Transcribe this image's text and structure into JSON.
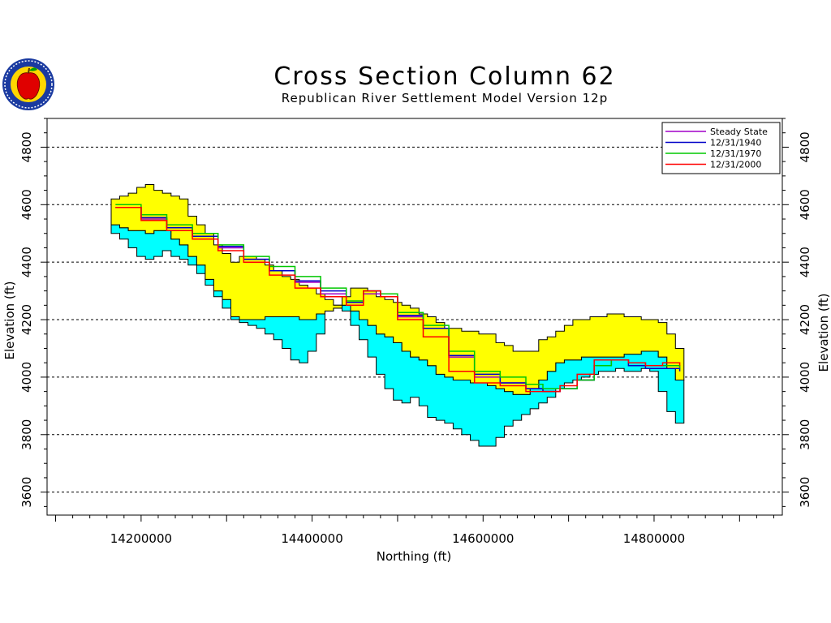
{
  "colors": {
    "background": "#ffffff",
    "upper_layer": "#ffff00",
    "lower_layer": "#00ffff",
    "outline": "#000000",
    "gridline": "#000000"
  },
  "logo": {
    "icon": "apple-seal-logo",
    "ring_text": "KANSAS NEBRASKA COLORADO"
  },
  "chart_data": {
    "type": "area",
    "title": "Cross Section Column 62",
    "subtitle": "Republican River Settlement Model Version 12p",
    "xlabel": "Northing (ft)",
    "ylabel": "Elevation (ft)",
    "ylabel_right": "Elevation (ft)",
    "xlim": [
      14090000,
      14950000
    ],
    "ylim": [
      3490000,
      4925000
    ],
    "ylim_note": "",
    "x_ticks": [
      14200000,
      14400000,
      14600000,
      14800000
    ],
    "x_tick_labels": [
      "14200000",
      "14400000",
      "14600000",
      "14800000"
    ],
    "y_ticks": [
      3600,
      3800,
      4000,
      4200,
      4400,
      4600,
      4800
    ],
    "y_tick_labels": [
      "3600",
      "3800",
      "4000",
      "4200",
      "4400",
      "4600",
      "4800"
    ],
    "grid": "horizontal-dashed",
    "legend_position": "top-right",
    "layers": {
      "land_surface": {
        "x": [
          14170000,
          14180000,
          14190000,
          14200000,
          14210000,
          14220000,
          14230000,
          14240000,
          14250000,
          14260000,
          14270000,
          14280000,
          14290000,
          14300000,
          14310000,
          14320000,
          14330000,
          14340000,
          14350000,
          14360000,
          14370000,
          14380000,
          14390000,
          14400000,
          14410000,
          14420000,
          14430000,
          14440000,
          14450000,
          14460000,
          14470000,
          14480000,
          14490000,
          14500000,
          14510000,
          14520000,
          14530000,
          14540000,
          14550000,
          14560000,
          14570000,
          14580000,
          14590000,
          14600000,
          14610000,
          14620000,
          14630000,
          14640000,
          14650000,
          14660000,
          14670000,
          14680000,
          14690000,
          14700000,
          14710000,
          14720000,
          14730000,
          14740000,
          14750000,
          14760000,
          14770000,
          14780000,
          14790000,
          14800000,
          14810000,
          14820000,
          14830000
        ],
        "y": [
          4620,
          4630,
          4640,
          4660,
          4670,
          4650,
          4640,
          4630,
          4620,
          4560,
          4530,
          4500,
          4460,
          4430,
          4400,
          4420,
          4420,
          4410,
          4390,
          4370,
          4350,
          4340,
          4320,
          4310,
          4290,
          4270,
          4250,
          4280,
          4310,
          4310,
          4300,
          4280,
          4270,
          4260,
          4250,
          4240,
          4220,
          4210,
          4190,
          4170,
          4170,
          4160,
          4160,
          4150,
          4150,
          4120,
          4110,
          4090,
          4090,
          4090,
          4130,
          4140,
          4160,
          4180,
          4200,
          4200,
          4210,
          4210,
          4220,
          4220,
          4210,
          4210,
          4200,
          4200,
          4190,
          4150,
          4100
        ]
      },
      "upper_bottom": {
        "y": [
          4530,
          4520,
          4510,
          4510,
          4500,
          4510,
          4510,
          4480,
          4460,
          4420,
          4390,
          4340,
          4300,
          4270,
          4210,
          4200,
          4200,
          4200,
          4210,
          4210,
          4210,
          4210,
          4200,
          4200,
          4220,
          4230,
          4240,
          4250,
          4230,
          4200,
          4180,
          4150,
          4140,
          4120,
          4090,
          4070,
          4060,
          4040,
          4010,
          4000,
          3990,
          3990,
          3980,
          3980,
          3970,
          3960,
          3950,
          3940,
          3940,
          3960,
          3990,
          4020,
          4050,
          4060,
          4060,
          4070,
          4070,
          4070,
          4070,
          4070,
          4080,
          4080,
          4090,
          4090,
          4070,
          4030,
          3990
        ]
      },
      "lower_bottom": {
        "y": [
          4500,
          4480,
          4450,
          4420,
          4410,
          4420,
          4440,
          4420,
          4410,
          4390,
          4360,
          4320,
          4280,
          4240,
          4200,
          4190,
          4180,
          4170,
          4150,
          4130,
          4100,
          4060,
          4050,
          4090,
          4150,
          4230,
          4250,
          4230,
          4180,
          4130,
          4070,
          4010,
          3960,
          3920,
          3910,
          3930,
          3900,
          3860,
          3850,
          3840,
          3820,
          3800,
          3780,
          3760,
          3760,
          3790,
          3830,
          3850,
          3870,
          3890,
          3910,
          3930,
          3960,
          3980,
          3990,
          4000,
          4010,
          4020,
          4020,
          4030,
          4020,
          4020,
          4030,
          4020,
          3950,
          3880,
          3840
        ]
      }
    },
    "series": [
      {
        "name": "Steady State",
        "color": "#a000c8",
        "x": [
          14170000,
          14200000,
          14230000,
          14260000,
          14290000,
          14320000,
          14350000,
          14380000,
          14410000,
          14440000,
          14460000,
          14480000,
          14500000,
          14530000,
          14560000,
          14590000,
          14620000,
          14650000,
          14670000,
          14690000,
          14710000,
          14730000,
          14750000,
          14770000,
          14790000,
          14810000,
          14830000
        ],
        "y": [
          4590,
          4550,
          4520,
          4490,
          4450,
          4410,
          4370,
          4330,
          4290,
          4260,
          4290,
          4280,
          4210,
          4170,
          4070,
          4000,
          3980,
          3960,
          3950,
          3960,
          3990,
          4040,
          4060,
          4050,
          4040,
          4040,
          4030
        ]
      },
      {
        "name": "12/31/1940",
        "color": "#0000c8",
        "x": [
          14170000,
          14200000,
          14230000,
          14260000,
          14290000,
          14320000,
          14350000,
          14380000,
          14410000,
          14440000,
          14460000,
          14480000,
          14500000,
          14530000,
          14560000,
          14590000,
          14620000,
          14650000,
          14670000,
          14690000,
          14710000,
          14730000,
          14750000,
          14770000,
          14790000,
          14810000,
          14830000
        ],
        "y": [
          4590,
          4555,
          4520,
          4490,
          4455,
          4410,
          4370,
          4335,
          4300,
          4260,
          4300,
          4280,
          4215,
          4170,
          4075,
          4010,
          3980,
          3960,
          3950,
          3960,
          3990,
          4040,
          4060,
          4040,
          4030,
          4030,
          4020
        ]
      },
      {
        "name": "12/31/1970",
        "color": "#00c800",
        "x": [
          14170000,
          14200000,
          14230000,
          14260000,
          14290000,
          14320000,
          14350000,
          14380000,
          14410000,
          14440000,
          14460000,
          14480000,
          14500000,
          14530000,
          14560000,
          14590000,
          14620000,
          14650000,
          14670000,
          14690000,
          14710000,
          14730000,
          14750000,
          14770000,
          14790000,
          14810000,
          14830000
        ],
        "y": [
          4600,
          4565,
          4530,
          4500,
          4460,
          4420,
          4385,
          4350,
          4310,
          4265,
          4300,
          4290,
          4225,
          4180,
          4090,
          4020,
          4000,
          3975,
          3960,
          3960,
          3990,
          4040,
          4060,
          4050,
          4040,
          4040,
          4030
        ]
      },
      {
        "name": "12/31/2000",
        "color": "#ff0000",
        "x": [
          14170000,
          14200000,
          14230000,
          14260000,
          14290000,
          14320000,
          14350000,
          14380000,
          14410000,
          14440000,
          14460000,
          14480000,
          14500000,
          14530000,
          14560000,
          14590000,
          14620000,
          14650000,
          14670000,
          14690000,
          14710000,
          14730000,
          14750000,
          14770000,
          14790000,
          14810000,
          14830000
        ],
        "y": [
          4590,
          4545,
          4510,
          4480,
          4440,
          4400,
          4355,
          4310,
          4280,
          4250,
          4300,
          4280,
          4200,
          4140,
          4020,
          3980,
          3970,
          3950,
          3950,
          3970,
          4010,
          4060,
          4060,
          4050,
          4040,
          4050,
          4040
        ]
      }
    ]
  }
}
